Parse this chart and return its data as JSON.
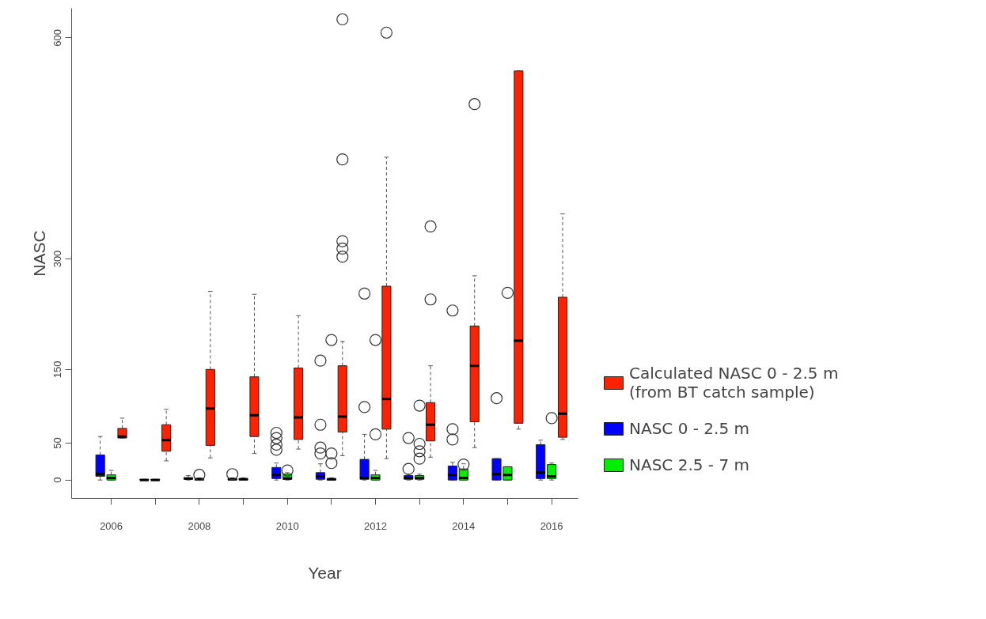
{
  "chart_data": {
    "type": "box",
    "xlabel": "Year",
    "ylabel": "NASC",
    "categories": [
      "2006",
      null,
      "2008",
      null,
      "2010",
      null,
      "2012",
      null,
      "2014",
      null,
      "2016"
    ],
    "ylim": [
      -25,
      640
    ],
    "yticks": [
      0,
      50,
      150,
      300,
      600
    ],
    "legend": "right",
    "series": [
      {
        "name": "Calculated NASC 0 - 2.5 m (from BT catch sample)",
        "color": "#ff2200",
        "boxes": [
          {
            "low": 57,
            "q1": 57,
            "median": 59,
            "q3": 70,
            "high": 84
          },
          {
            "low": 26,
            "q1": 39,
            "median": 54,
            "q3": 75,
            "high": 96
          },
          {
            "low": 30,
            "q1": 47,
            "median": 97,
            "q3": 150,
            "high": 256
          },
          {
            "low": 36,
            "q1": 59,
            "median": 88,
            "q3": 140,
            "high": 252
          },
          {
            "low": 42,
            "q1": 55,
            "median": 85,
            "q3": 152,
            "high": 223
          },
          {
            "low": 33,
            "q1": 65,
            "median": 86,
            "q3": 155,
            "high": 188,
            "outliers": [
              625,
              435,
              324,
              314,
              303
            ]
          },
          {
            "low": 29,
            "q1": 69,
            "median": 110,
            "q3": 263,
            "high": 438,
            "outliers": [
              607
            ]
          },
          {
            "low": 31,
            "q1": 53,
            "median": 75,
            "q3": 105,
            "high": 155,
            "outliers": [
              344,
              245
            ]
          },
          {
            "low": 44,
            "q1": 79,
            "median": 155,
            "q3": 209,
            "high": 277,
            "outliers": [
              510
            ]
          },
          {
            "low": 69,
            "q1": 77,
            "median": 189,
            "q3": 555,
            "high": 555
          },
          {
            "low": 55,
            "q1": 58,
            "median": 90,
            "q3": 248,
            "high": 361
          }
        ]
      },
      {
        "name": "NASC 0 - 2.5 m",
        "color": "#0000ff",
        "boxes": [
          {
            "low": 0,
            "q1": 5,
            "median": 8,
            "q3": 34,
            "high": 59
          },
          {
            "low": 0,
            "q1": 0,
            "median": 0,
            "q3": 1,
            "high": 1
          },
          {
            "low": 0,
            "q1": 1,
            "median": 2,
            "q3": 3,
            "high": 6
          },
          {
            "low": 0,
            "q1": 0,
            "median": 1,
            "q3": 2,
            "high": 3,
            "outliers": [
              8
            ]
          },
          {
            "low": 0,
            "q1": 2,
            "median": 7,
            "q3": 17,
            "high": 23,
            "outliers": [
              64,
              57,
              48,
              41
            ]
          },
          {
            "low": 0,
            "q1": 1,
            "median": 5,
            "q3": 10,
            "high": 22,
            "outliers": [
              162,
              75,
              44,
              36
            ]
          },
          {
            "low": 0,
            "q1": 1,
            "median": 3,
            "q3": 28,
            "high": 62,
            "outliers": [
              253,
              99
            ]
          },
          {
            "low": 0,
            "q1": 1,
            "median": 3,
            "q3": 6,
            "high": 8,
            "outliers": [
              57,
              15
            ]
          },
          {
            "low": 0,
            "q1": 0,
            "median": 7,
            "q3": 19,
            "high": 24,
            "outliers": [
              230,
              69,
              55
            ]
          },
          {
            "low": 0,
            "q1": 0,
            "median": 8,
            "q3": 29,
            "high": 29,
            "outliers": [
              111
            ]
          },
          {
            "low": 0,
            "q1": 2,
            "median": 10,
            "q3": 48,
            "high": 54
          }
        ]
      },
      {
        "name": "NASC 2.5 - 7 m",
        "color": "#00ee00",
        "boxes": [
          {
            "low": 0,
            "q1": 0,
            "median": 3,
            "q3": 7,
            "high": 13
          },
          {
            "low": 0,
            "q1": 0,
            "median": 0,
            "q3": 1,
            "high": 1
          },
          {
            "low": 0,
            "q1": 0,
            "median": 1,
            "q3": 2,
            "high": 3,
            "outliers": [
              7
            ]
          },
          {
            "low": 0,
            "q1": 0,
            "median": 1,
            "q3": 2,
            "high": 3
          },
          {
            "low": 0,
            "q1": 1,
            "median": 2,
            "q3": 8,
            "high": 10,
            "outliers": [
              13
            ]
          },
          {
            "low": 0,
            "q1": 0,
            "median": 1,
            "q3": 2,
            "high": 3,
            "outliers": [
              190,
              36,
              23
            ]
          },
          {
            "low": 0,
            "q1": 0,
            "median": 3,
            "q3": 7,
            "high": 13,
            "outliers": [
              190,
              62
            ]
          },
          {
            "low": 0,
            "q1": 1,
            "median": 3,
            "q3": 6,
            "high": 8,
            "outliers": [
              101,
              49,
              39,
              29
            ]
          },
          {
            "low": 0,
            "q1": 0,
            "median": 3,
            "q3": 15,
            "high": 22,
            "outliers": [
              21
            ]
          },
          {
            "low": 0,
            "q1": 0,
            "median": 7,
            "q3": 18,
            "high": 18,
            "outliers": [
              254
            ]
          },
          {
            "low": 0,
            "q1": 2,
            "median": 5,
            "q3": 21,
            "high": 23,
            "outliers": [
              84
            ]
          }
        ]
      }
    ]
  }
}
